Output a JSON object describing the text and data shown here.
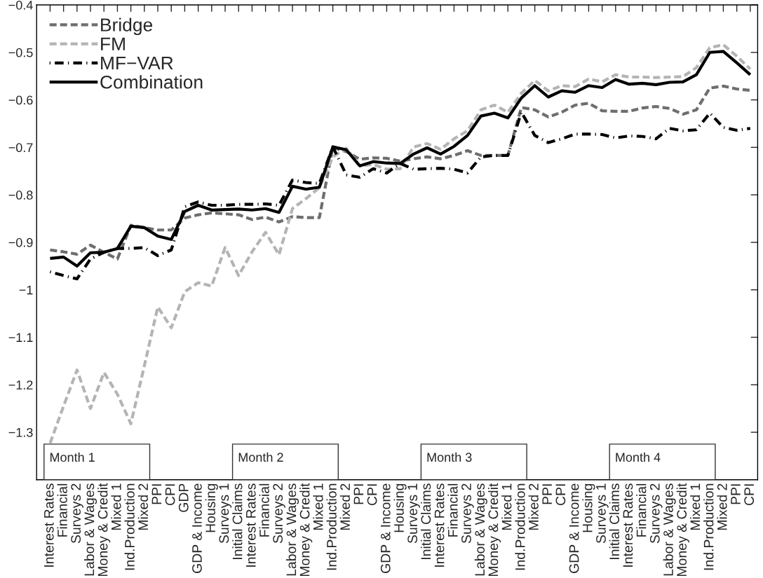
{
  "chart_data": {
    "type": "line",
    "categories": [
      "Interest Rates",
      "Financial",
      "Surveys 2",
      "Labor & Wages",
      "Money & Credit",
      "Mixed 1",
      "Ind.Production",
      "Mixed 2",
      "PPI",
      "CPI",
      "GDP",
      "GDP & Income",
      "Housing",
      "Surveys 1",
      "Initial Claims",
      "Interest Rates",
      "Financial",
      "Surveys 2",
      "Labor & Wages",
      "Money & Credit",
      "Mixed 1",
      "Ind.Production",
      "Mixed 2",
      "PPI",
      "CPI",
      "GDP & Income",
      "Housing",
      "Surveys 1",
      "Initial Claims",
      "Interest Rates",
      "Financial",
      "Surveys 2",
      "Labor & Wages",
      "Money & Credit",
      "Mixed 1",
      "Ind.Production",
      "Mixed 2",
      "PPI",
      "CPI",
      "GDP & Income",
      "Housing",
      "Surveys 1",
      "Initial Claims",
      "Interest Rates",
      "Financial",
      "Surveys 2",
      "Labor & Wages",
      "Money & Credit",
      "Mixed 1",
      "Ind.Production",
      "Mixed 2",
      "PPI",
      "CPI"
    ],
    "series": [
      {
        "name": "Bridge",
        "color": "#6e6e6e",
        "line_style": "dashed",
        "values": [
          -0.916,
          -0.92,
          -0.925,
          -0.906,
          -0.921,
          -0.935,
          -0.864,
          -0.869,
          -0.874,
          -0.874,
          -0.849,
          -0.842,
          -0.838,
          -0.84,
          -0.842,
          -0.852,
          -0.847,
          -0.857,
          -0.846,
          -0.848,
          -0.848,
          -0.7,
          -0.709,
          -0.725,
          -0.722,
          -0.723,
          -0.729,
          -0.724,
          -0.72,
          -0.724,
          -0.717,
          -0.707,
          -0.717,
          -0.717,
          -0.717,
          -0.616,
          -0.621,
          -0.636,
          -0.626,
          -0.611,
          -0.607,
          -0.623,
          -0.624,
          -0.624,
          -0.617,
          -0.614,
          -0.618,
          -0.63,
          -0.621,
          -0.575,
          -0.571,
          -0.577,
          -0.58
        ]
      },
      {
        "name": "FM",
        "color": "#b4b4b4",
        "line_style": "dashed",
        "values": [
          -1.323,
          -1.245,
          -1.169,
          -1.25,
          -1.174,
          -1.22,
          -1.282,
          -1.16,
          -1.036,
          -1.08,
          -1.004,
          -0.985,
          -0.992,
          -0.911,
          -0.97,
          -0.92,
          -0.879,
          -0.926,
          -0.829,
          -0.808,
          -0.785,
          -0.72,
          -0.702,
          -0.739,
          -0.736,
          -0.746,
          -0.745,
          -0.699,
          -0.692,
          -0.704,
          -0.682,
          -0.665,
          -0.621,
          -0.611,
          -0.626,
          -0.586,
          -0.559,
          -0.581,
          -0.57,
          -0.572,
          -0.556,
          -0.562,
          -0.547,
          -0.552,
          -0.552,
          -0.553,
          -0.552,
          -0.551,
          -0.532,
          -0.49,
          -0.484,
          -0.508,
          -0.535
        ]
      },
      {
        "name": "MF−VAR",
        "color": "#000000",
        "line_style": "dashdot",
        "values": [
          -0.962,
          -0.97,
          -0.977,
          -0.935,
          -0.921,
          -0.913,
          -0.913,
          -0.911,
          -0.928,
          -0.916,
          -0.825,
          -0.815,
          -0.822,
          -0.822,
          -0.82,
          -0.82,
          -0.819,
          -0.822,
          -0.769,
          -0.774,
          -0.776,
          -0.699,
          -0.758,
          -0.763,
          -0.745,
          -0.754,
          -0.734,
          -0.746,
          -0.745,
          -0.744,
          -0.746,
          -0.754,
          -0.72,
          -0.717,
          -0.717,
          -0.626,
          -0.675,
          -0.69,
          -0.682,
          -0.672,
          -0.672,
          -0.673,
          -0.68,
          -0.676,
          -0.677,
          -0.682,
          -0.66,
          -0.665,
          -0.663,
          -0.628,
          -0.658,
          -0.664,
          -0.66
        ]
      },
      {
        "name": "Combination",
        "color": "#000000",
        "line_style": "solid",
        "values": [
          -0.934,
          -0.931,
          -0.95,
          -0.922,
          -0.921,
          -0.913,
          -0.866,
          -0.869,
          -0.887,
          -0.894,
          -0.835,
          -0.822,
          -0.832,
          -0.831,
          -0.83,
          -0.832,
          -0.829,
          -0.837,
          -0.782,
          -0.788,
          -0.784,
          -0.699,
          -0.705,
          -0.739,
          -0.73,
          -0.733,
          -0.734,
          -0.714,
          -0.701,
          -0.714,
          -0.698,
          -0.675,
          -0.634,
          -0.628,
          -0.638,
          -0.596,
          -0.57,
          -0.594,
          -0.581,
          -0.584,
          -0.57,
          -0.574,
          -0.557,
          -0.567,
          -0.565,
          -0.568,
          -0.563,
          -0.562,
          -0.547,
          -0.5,
          -0.498,
          -0.522,
          -0.547
        ]
      }
    ],
    "ylim": [
      -1.4,
      -0.4
    ],
    "yticks": [
      {
        "value": -1.3,
        "label": "−1.3"
      },
      {
        "value": -1.2,
        "label": "−1.2"
      },
      {
        "value": -1.1,
        "label": "−1.1"
      },
      {
        "value": -1,
        "label": "−1"
      },
      {
        "value": -0.9,
        "label": "−0.9"
      },
      {
        "value": -0.8,
        "label": "−0.8"
      },
      {
        "value": -0.7,
        "label": "−0.7"
      },
      {
        "value": -0.6,
        "label": "−0.6"
      },
      {
        "value": -0.5,
        "label": "−0.5"
      },
      {
        "value": -0.4,
        "label": "−0.4"
      }
    ],
    "annotations": [
      "Month 1",
      "Month 2",
      "Month 3",
      "Month 4"
    ],
    "legend": "top left",
    "grid": false,
    "marker": "none"
  }
}
